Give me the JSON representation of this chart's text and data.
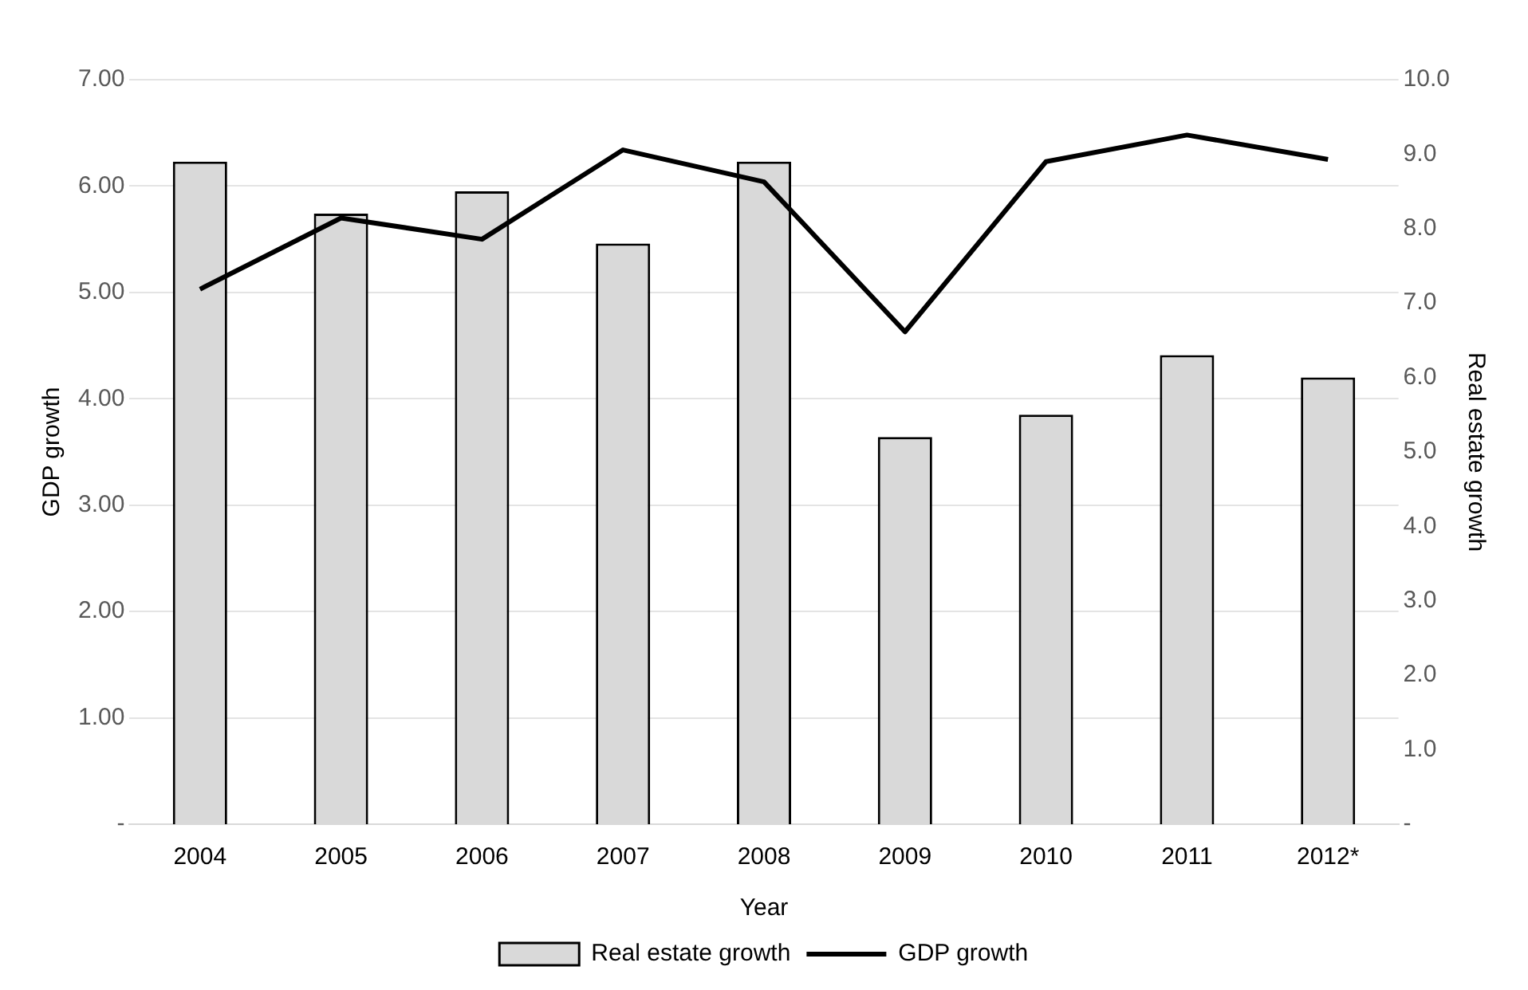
{
  "chart_data": {
    "type": "bar",
    "xlabel": "Year",
    "ylabel": "GDP growth",
    "y2label": "Real estate growth",
    "categories": [
      "2004",
      "2005",
      "2006",
      "2007",
      "2008",
      "2009",
      "2010",
      "2011",
      "2012*"
    ],
    "series": [
      {
        "name": "Real estate growth",
        "axis": "y2",
        "color": "#d9d9d9",
        "values": [
          8.9,
          8.2,
          8.5,
          7.8,
          8.9,
          5.2,
          5.5,
          6.3,
          6.0
        ]
      },
      {
        "name": "GDP growth",
        "type": "line",
        "color": "#000000",
        "values": [
          5.03,
          5.7,
          5.5,
          6.34,
          6.04,
          4.63,
          6.23,
          6.48,
          6.25
        ]
      }
    ],
    "ylim": [
      0,
      7
    ],
    "yticks": [
      {
        "value": 0,
        "label": "-"
      },
      {
        "value": 1,
        "label": "1.00"
      },
      {
        "value": 2,
        "label": "2.00"
      },
      {
        "value": 3,
        "label": "3.00"
      },
      {
        "value": 4,
        "label": "4.00"
      },
      {
        "value": 5,
        "label": "5.00"
      },
      {
        "value": 6,
        "label": "6.00"
      },
      {
        "value": 7,
        "label": "7.00"
      }
    ],
    "y2lim": [
      0,
      10
    ],
    "y2ticks": [
      {
        "value": 0,
        "label": "-"
      },
      {
        "value": 1,
        "label": "1.0"
      },
      {
        "value": 2,
        "label": "2.0"
      },
      {
        "value": 3,
        "label": "3.0"
      },
      {
        "value": 4,
        "label": "4.0"
      },
      {
        "value": 5,
        "label": "5.0"
      },
      {
        "value": 6,
        "label": "6.0"
      },
      {
        "value": 7,
        "label": "7.0"
      },
      {
        "value": 8,
        "label": "8.0"
      },
      {
        "value": 9,
        "label": "9.0"
      },
      {
        "value": 10,
        "label": "10.0"
      }
    ],
    "grid": "y",
    "legend": "bottom",
    "marker": "none",
    "line_style": "solid"
  }
}
